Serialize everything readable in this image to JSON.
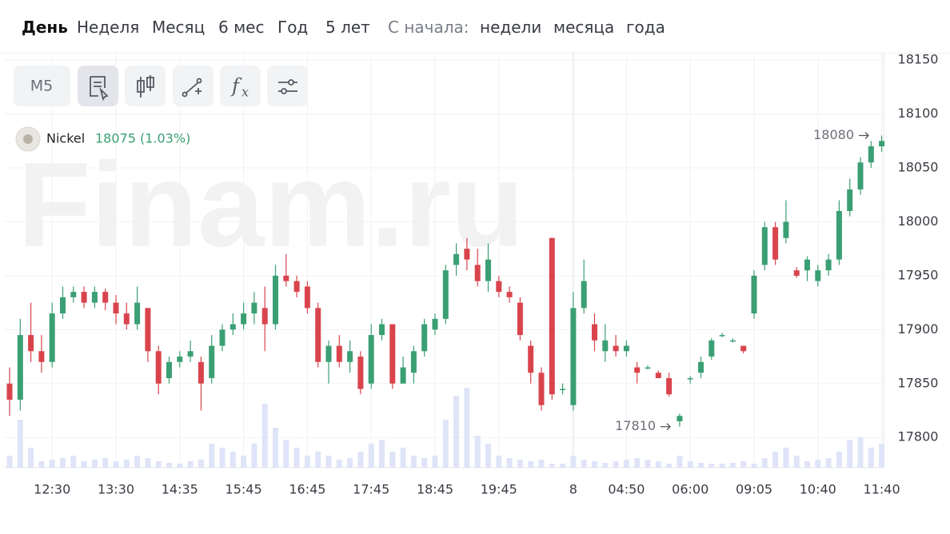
{
  "nav": {
    "periods": [
      "День",
      "Неделя",
      "Месяц",
      "6 мес",
      "Год",
      "5 лет"
    ],
    "since_label": "С начала:",
    "since": [
      "недели",
      "месяца",
      "года"
    ]
  },
  "toolbar": {
    "timeframe": "M5"
  },
  "chart_data": {
    "type": "candlestick",
    "watermark": "Finam.ru",
    "legend": {
      "name": "Nickel",
      "price": 18075,
      "change": "(1.03%)"
    },
    "annotations": [
      18080,
      17810
    ],
    "categories": [
      null,
      null,
      null,
      null,
      "12:30",
      null,
      null,
      null,
      null,
      null,
      "13:30",
      null,
      null,
      null,
      null,
      null,
      "14:35",
      null,
      null,
      null,
      null,
      null,
      "15:45",
      null,
      null,
      null,
      null,
      null,
      "16:45",
      null,
      null,
      null,
      null,
      null,
      "17:45",
      null,
      null,
      null,
      null,
      null,
      "18:45",
      null,
      null,
      null,
      null,
      null,
      "19:45",
      null,
      null,
      null,
      null,
      null,
      null,
      "8",
      null,
      null,
      null,
      null,
      "04:50",
      null,
      null,
      null,
      null,
      null,
      "06:00",
      null,
      null,
      null,
      null,
      null,
      "09:05",
      null,
      null,
      null,
      null,
      null,
      "10:40",
      null,
      null,
      null,
      null,
      null,
      "11:40"
    ],
    "open": [
      17850,
      17835,
      17895,
      17880,
      17870,
      17915,
      17930,
      17935,
      17925,
      17935,
      17925,
      17915,
      17905,
      17920,
      17880,
      17855,
      17870,
      17875,
      17870,
      17855,
      17885,
      17900,
      17905,
      17915,
      17920,
      17905,
      17950,
      17945,
      17940,
      17920,
      17870,
      17885,
      17870,
      17875,
      17850,
      17895,
      17905,
      17850,
      17860,
      17880,
      17900,
      17910,
      17960,
      17975,
      17960,
      17945,
      17945,
      17935,
      17925,
      17885,
      17860,
      17985,
      17845,
      17830,
      17920,
      17905,
      17880,
      17885,
      17880,
      17865,
      17865,
      17860,
      17855,
      17815,
      17855,
      17860,
      17875,
      17895,
      17890,
      17885,
      17915,
      17960,
      17995,
      17985,
      17955,
      17955,
      17945,
      17955,
      17965,
      18010,
      18030,
      18055,
      18070
    ],
    "high": [
      17865,
      17910,
      17925,
      17895,
      17925,
      17940,
      17940,
      17940,
      17940,
      17938,
      17932,
      17925,
      17940,
      17920,
      17885,
      17875,
      17880,
      17890,
      17875,
      17895,
      17905,
      17915,
      17925,
      17935,
      17940,
      17960,
      17970,
      17950,
      17945,
      17925,
      17890,
      17895,
      17890,
      17880,
      17905,
      17910,
      17905,
      17875,
      17885,
      17910,
      17915,
      17960,
      17980,
      17985,
      17975,
      17980,
      17950,
      17940,
      17930,
      17890,
      17865,
      17985,
      17850,
      17935,
      17965,
      17915,
      17905,
      17895,
      17890,
      17870,
      17867,
      17862,
      17860,
      17822,
      17857,
      17875,
      17892,
      17897,
      17892,
      17885,
      17955,
      18000,
      18000,
      18020,
      17958,
      17968,
      17960,
      17970,
      18020,
      18040,
      18060,
      18075,
      18080
    ],
    "low": [
      17820,
      17825,
      17870,
      17860,
      17865,
      17910,
      17925,
      17920,
      17920,
      17918,
      17905,
      17900,
      17900,
      17870,
      17840,
      17850,
      17865,
      17870,
      17825,
      17850,
      17880,
      17895,
      17900,
      17905,
      17880,
      17900,
      17940,
      17930,
      17915,
      17865,
      17850,
      17865,
      17860,
      17840,
      17845,
      17890,
      17845,
      17850,
      17850,
      17875,
      17895,
      17905,
      17950,
      17955,
      17940,
      17935,
      17930,
      17925,
      17890,
      17850,
      17825,
      17835,
      17840,
      17825,
      17915,
      17880,
      17870,
      17875,
      17875,
      17850,
      17863,
      17855,
      17838,
      17810,
      17850,
      17855,
      17872,
      17893,
      17888,
      17878,
      17910,
      17955,
      17960,
      17980,
      17948,
      17945,
      17940,
      17950,
      17960,
      18005,
      18025,
      18050,
      18065
    ],
    "close": [
      17835,
      17895,
      17880,
      17870,
      17915,
      17930,
      17935,
      17925,
      17935,
      17925,
      17915,
      17905,
      17925,
      17880,
      17850,
      17870,
      17875,
      17880,
      17850,
      17885,
      17900,
      17905,
      17915,
      17925,
      17905,
      17950,
      17945,
      17935,
      17920,
      17870,
      17885,
      17870,
      17880,
      17845,
      17895,
      17905,
      17850,
      17865,
      17880,
      17905,
      17910,
      17955,
      17970,
      17965,
      17945,
      17965,
      17935,
      17930,
      17895,
      17860,
      17830,
      17840,
      17845,
      17920,
      17945,
      17890,
      17890,
      17880,
      17885,
      17860,
      17865,
      17855,
      17840,
      17820,
      17855,
      17870,
      17890,
      17895,
      17890,
      17880,
      17950,
      17995,
      17965,
      18000,
      17950,
      17965,
      17955,
      17965,
      18010,
      18030,
      18055,
      18070,
      18075
    ],
    "volume": [
      15,
      60,
      25,
      8,
      10,
      12,
      15,
      8,
      10,
      12,
      8,
      10,
      15,
      12,
      8,
      6,
      5,
      8,
      10,
      30,
      25,
      20,
      15,
      30,
      80,
      50,
      35,
      25,
      15,
      20,
      15,
      10,
      12,
      20,
      30,
      35,
      20,
      25,
      15,
      12,
      15,
      60,
      90,
      100,
      40,
      30,
      15,
      12,
      10,
      8,
      10,
      5,
      5,
      15,
      10,
      8,
      6,
      8,
      10,
      12,
      10,
      8,
      5,
      15,
      8,
      6,
      5,
      5,
      6,
      8,
      5,
      12,
      20,
      25,
      15,
      8,
      10,
      12,
      20,
      35,
      38,
      25,
      30
    ],
    "up_color": "#3b9f74",
    "down_color": "#d9444c",
    "volume_color": "#dfe4f8",
    "ylim": [
      17772,
      18156
    ],
    "yticks": [
      17800,
      17850,
      17900,
      17950,
      18000,
      18050,
      18100,
      18150
    ],
    "grid": true
  }
}
